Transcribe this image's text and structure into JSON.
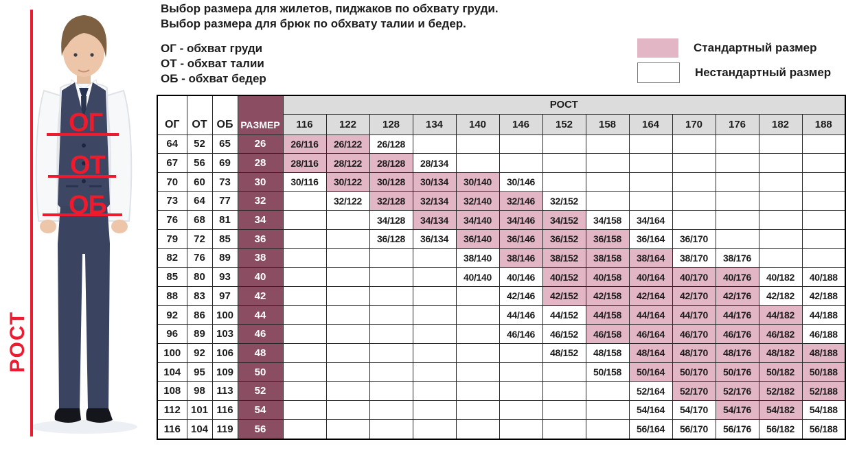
{
  "intro": {
    "title_line1": "Выбор размера для жилетов, пиджаков по обхвату груди.",
    "title_line2": "Выбор размера для брюк по обхвату талии и бедер.",
    "abbr": [
      "ОГ - обхват груди",
      "ОТ - обхват талии",
      "ОБ - обхват бедер"
    ]
  },
  "overlay": {
    "chest": "ОГ",
    "waist": "ОТ",
    "hips": "ОБ",
    "height": "РОСТ"
  },
  "colors": {
    "accent_red": "#ee1b2e",
    "standard_cell": "#e2b6c4",
    "size_column": "#8a4d62",
    "header_bg": "#dcdcdc"
  },
  "chart_data": {
    "type": "table",
    "title": "Выбор размера для жилетов, пиджаков по обхвату груди. Выбор размера для брюк по обхвату талии и бедер.",
    "legend": {
      "standard": "Стандартный размер",
      "nonstandard": "Нестандартный размер"
    },
    "measure_headers": [
      "ОГ",
      "ОТ",
      "ОБ"
    ],
    "size_header": "РАЗМЕР",
    "height_group_header": "РОСТ",
    "heights": [
      "116",
      "122",
      "128",
      "134",
      "140",
      "146",
      "152",
      "158",
      "164",
      "170",
      "176",
      "182",
      "188"
    ],
    "rows": [
      {
        "og": "64",
        "ot": "52",
        "ob": "65",
        "size": "26",
        "cells": [
          {
            "height": "116",
            "label": "26/116",
            "standard": true
          },
          {
            "height": "122",
            "label": "26/122",
            "standard": true
          },
          {
            "height": "128",
            "label": "26/128",
            "standard": false
          }
        ]
      },
      {
        "og": "67",
        "ot": "56",
        "ob": "69",
        "size": "28",
        "cells": [
          {
            "height": "116",
            "label": "28/116",
            "standard": true
          },
          {
            "height": "122",
            "label": "28/122",
            "standard": true
          },
          {
            "height": "128",
            "label": "28/128",
            "standard": true
          },
          {
            "height": "134",
            "label": "28/134",
            "standard": false
          }
        ]
      },
      {
        "og": "70",
        "ot": "60",
        "ob": "73",
        "size": "30",
        "cells": [
          {
            "height": "116",
            "label": "30/116",
            "standard": false
          },
          {
            "height": "122",
            "label": "30/122",
            "standard": true
          },
          {
            "height": "128",
            "label": "30/128",
            "standard": true
          },
          {
            "height": "134",
            "label": "30/134",
            "standard": true
          },
          {
            "height": "140",
            "label": "30/140",
            "standard": true
          },
          {
            "height": "146",
            "label": "30/146",
            "standard": false
          }
        ]
      },
      {
        "og": "73",
        "ot": "64",
        "ob": "77",
        "size": "32",
        "cells": [
          {
            "height": "122",
            "label": "32/122",
            "standard": false
          },
          {
            "height": "128",
            "label": "32/128",
            "standard": true
          },
          {
            "height": "134",
            "label": "32/134",
            "standard": true
          },
          {
            "height": "140",
            "label": "32/140",
            "standard": true
          },
          {
            "height": "146",
            "label": "32/146",
            "standard": true
          },
          {
            "height": "152",
            "label": "32/152",
            "standard": false
          }
        ]
      },
      {
        "og": "76",
        "ot": "68",
        "ob": "81",
        "size": "34",
        "cells": [
          {
            "height": "128",
            "label": "34/128",
            "standard": false
          },
          {
            "height": "134",
            "label": "34/134",
            "standard": true
          },
          {
            "height": "140",
            "label": "34/140",
            "standard": true
          },
          {
            "height": "146",
            "label": "34/146",
            "standard": true
          },
          {
            "height": "152",
            "label": "34/152",
            "standard": true
          },
          {
            "height": "158",
            "label": "34/158",
            "standard": false
          },
          {
            "height": "164",
            "label": "34/164",
            "standard": false
          }
        ]
      },
      {
        "og": "79",
        "ot": "72",
        "ob": "85",
        "size": "36",
        "cells": [
          {
            "height": "128",
            "label": "36/128",
            "standard": false
          },
          {
            "height": "134",
            "label": "36/134",
            "standard": false
          },
          {
            "height": "140",
            "label": "36/140",
            "standard": true
          },
          {
            "height": "146",
            "label": "36/146",
            "standard": true
          },
          {
            "height": "152",
            "label": "36/152",
            "standard": true
          },
          {
            "height": "158",
            "label": "36/158",
            "standard": true
          },
          {
            "height": "164",
            "label": "36/164",
            "standard": false
          },
          {
            "height": "170",
            "label": "36/170",
            "standard": false
          }
        ]
      },
      {
        "og": "82",
        "ot": "76",
        "ob": "89",
        "size": "38",
        "cells": [
          {
            "height": "140",
            "label": "38/140",
            "standard": false
          },
          {
            "height": "146",
            "label": "38/146",
            "standard": true
          },
          {
            "height": "152",
            "label": "38/152",
            "standard": true
          },
          {
            "height": "158",
            "label": "38/158",
            "standard": true
          },
          {
            "height": "164",
            "label": "38/164",
            "standard": true
          },
          {
            "height": "170",
            "label": "38/170",
            "standard": false
          },
          {
            "height": "176",
            "label": "38/176",
            "standard": false
          }
        ]
      },
      {
        "og": "85",
        "ot": "80",
        "ob": "93",
        "size": "40",
        "cells": [
          {
            "height": "140",
            "label": "40/140",
            "standard": false
          },
          {
            "height": "146",
            "label": "40/146",
            "standard": false
          },
          {
            "height": "152",
            "label": "40/152",
            "standard": true
          },
          {
            "height": "158",
            "label": "40/158",
            "standard": true
          },
          {
            "height": "164",
            "label": "40/164",
            "standard": true
          },
          {
            "height": "170",
            "label": "40/170",
            "standard": true
          },
          {
            "height": "176",
            "label": "40/176",
            "standard": true
          },
          {
            "height": "182",
            "label": "40/182",
            "standard": false
          },
          {
            "height": "188",
            "label": "40/188",
            "standard": false
          }
        ]
      },
      {
        "og": "88",
        "ot": "83",
        "ob": "97",
        "size": "42",
        "cells": [
          {
            "height": "146",
            "label": "42/146",
            "standard": false
          },
          {
            "height": "152",
            "label": "42/152",
            "standard": true
          },
          {
            "height": "158",
            "label": "42/158",
            "standard": true
          },
          {
            "height": "164",
            "label": "42/164",
            "standard": true
          },
          {
            "height": "170",
            "label": "42/170",
            "standard": true
          },
          {
            "height": "176",
            "label": "42/176",
            "standard": true
          },
          {
            "height": "182",
            "label": "42/182",
            "standard": false
          },
          {
            "height": "188",
            "label": "42/188",
            "standard": false
          }
        ]
      },
      {
        "og": "92",
        "ot": "86",
        "ob": "100",
        "size": "44",
        "cells": [
          {
            "height": "146",
            "label": "44/146",
            "standard": false
          },
          {
            "height": "152",
            "label": "44/152",
            "standard": false
          },
          {
            "height": "158",
            "label": "44/158",
            "standard": true
          },
          {
            "height": "164",
            "label": "44/164",
            "standard": true
          },
          {
            "height": "170",
            "label": "44/170",
            "standard": true
          },
          {
            "height": "176",
            "label": "44/176",
            "standard": true
          },
          {
            "height": "182",
            "label": "44/182",
            "standard": true
          },
          {
            "height": "188",
            "label": "44/188",
            "standard": false
          }
        ]
      },
      {
        "og": "96",
        "ot": "89",
        "ob": "103",
        "size": "46",
        "cells": [
          {
            "height": "146",
            "label": "46/146",
            "standard": false
          },
          {
            "height": "152",
            "label": "46/152",
            "standard": false
          },
          {
            "height": "158",
            "label": "46/158",
            "standard": true
          },
          {
            "height": "164",
            "label": "46/164",
            "standard": true
          },
          {
            "height": "170",
            "label": "46/170",
            "standard": true
          },
          {
            "height": "176",
            "label": "46/176",
            "standard": true
          },
          {
            "height": "182",
            "label": "46/182",
            "standard": true
          },
          {
            "height": "188",
            "label": "46/188",
            "standard": false
          }
        ]
      },
      {
        "og": "100",
        "ot": "92",
        "ob": "106",
        "size": "48",
        "cells": [
          {
            "height": "152",
            "label": "48/152",
            "standard": false
          },
          {
            "height": "158",
            "label": "48/158",
            "standard": false
          },
          {
            "height": "164",
            "label": "48/164",
            "standard": true
          },
          {
            "height": "170",
            "label": "48/170",
            "standard": true
          },
          {
            "height": "176",
            "label": "48/176",
            "standard": true
          },
          {
            "height": "182",
            "label": "48/182",
            "standard": true
          },
          {
            "height": "188",
            "label": "48/188",
            "standard": true
          }
        ]
      },
      {
        "og": "104",
        "ot": "95",
        "ob": "109",
        "size": "50",
        "cells": [
          {
            "height": "158",
            "label": "50/158",
            "standard": false
          },
          {
            "height": "164",
            "label": "50/164",
            "standard": true
          },
          {
            "height": "170",
            "label": "50/170",
            "standard": true
          },
          {
            "height": "176",
            "label": "50/176",
            "standard": true
          },
          {
            "height": "182",
            "label": "50/182",
            "standard": true
          },
          {
            "height": "188",
            "label": "50/188",
            "standard": true
          }
        ]
      },
      {
        "og": "108",
        "ot": "98",
        "ob": "113",
        "size": "52",
        "cells": [
          {
            "height": "164",
            "label": "52/164",
            "standard": false
          },
          {
            "height": "170",
            "label": "52/170",
            "standard": true
          },
          {
            "height": "176",
            "label": "52/176",
            "standard": true
          },
          {
            "height": "182",
            "label": "52/182",
            "standard": true
          },
          {
            "height": "188",
            "label": "52/188",
            "standard": true
          }
        ]
      },
      {
        "og": "112",
        "ot": "101",
        "ob": "116",
        "size": "54",
        "cells": [
          {
            "height": "164",
            "label": "54/164",
            "standard": false
          },
          {
            "height": "170",
            "label": "54/170",
            "standard": false
          },
          {
            "height": "176",
            "label": "54/176",
            "standard": true
          },
          {
            "height": "182",
            "label": "54/182",
            "standard": true
          },
          {
            "height": "188",
            "label": "54/188",
            "standard": false
          }
        ]
      },
      {
        "og": "116",
        "ot": "104",
        "ob": "119",
        "size": "56",
        "cells": [
          {
            "height": "164",
            "label": "56/164",
            "standard": false
          },
          {
            "height": "170",
            "label": "56/170",
            "standard": false
          },
          {
            "height": "176",
            "label": "56/176",
            "standard": false
          },
          {
            "height": "182",
            "label": "56/182",
            "standard": false
          },
          {
            "height": "188",
            "label": "56/188",
            "standard": false
          }
        ]
      }
    ]
  }
}
